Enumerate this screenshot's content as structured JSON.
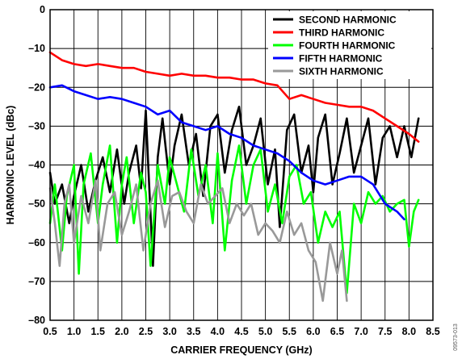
{
  "chart_data": {
    "type": "line",
    "xlabel": "CARRIER FREQUENCY (GHz)",
    "ylabel": "HARMONIC LEVEL (dBc)",
    "xlim": [
      0.5,
      8.5
    ],
    "ylim": [
      -80,
      0
    ],
    "xticks": [
      0.5,
      1.0,
      1.5,
      2.0,
      2.5,
      3.0,
      3.5,
      4.0,
      4.5,
      5.0,
      5.5,
      6.0,
      6.5,
      7.0,
      7.5,
      8.0,
      8.5
    ],
    "xtick_labels": [
      "0.5",
      "1.0",
      "1.5",
      "2.0",
      "2.5",
      "3.0",
      "3.5",
      "4.0",
      "4.5",
      "5.0",
      "5.5",
      "6.0",
      "6.5",
      "7.0",
      "7.5",
      "8.0",
      "8.5"
    ],
    "yticks": [
      0,
      -10,
      -20,
      -30,
      -40,
      -50,
      -60,
      -70,
      -80
    ],
    "ytick_labels": [
      "0",
      "–10",
      "–20",
      "–30",
      "–40",
      "–50",
      "–60",
      "–70",
      "–80"
    ],
    "grid": true,
    "legend_position": "top-right",
    "figure_id": "09573-013",
    "series": [
      {
        "name": "SECOND HARMONIC",
        "color": "#000000",
        "x": [
          0.5,
          0.6,
          0.75,
          0.9,
          1.0,
          1.15,
          1.3,
          1.45,
          1.6,
          1.75,
          1.9,
          2.05,
          2.15,
          2.3,
          2.4,
          2.5,
          2.55,
          2.65,
          2.75,
          2.85,
          3.0,
          3.1,
          3.25,
          3.4,
          3.55,
          3.7,
          3.85,
          4.0,
          4.15,
          4.3,
          4.45,
          4.6,
          4.75,
          4.9,
          5.05,
          5.2,
          5.3,
          5.45,
          5.6,
          5.75,
          5.9,
          6.0,
          6.1,
          6.25,
          6.4,
          6.55,
          6.7,
          6.85,
          7.0,
          7.15,
          7.3,
          7.45,
          7.6,
          7.75,
          7.9,
          8.05,
          8.2
        ],
        "y": [
          -42,
          -50,
          -45,
          -55,
          -48,
          -40,
          -52,
          -44,
          -38,
          -47,
          -36,
          -50,
          -42,
          -35,
          -46,
          -26,
          -40,
          -66,
          -38,
          -28,
          -45,
          -35,
          -27,
          -40,
          -32,
          -48,
          -30,
          -27,
          -42,
          -31,
          -25,
          -40,
          -35,
          -28,
          -45,
          -36,
          -56,
          -31,
          -27,
          -42,
          -35,
          -47,
          -33,
          -27,
          -45,
          -37,
          -28,
          -42,
          -35,
          -28,
          -45,
          -33,
          -30,
          -38,
          -30,
          -38,
          -28
        ]
      },
      {
        "name": "THIRD HARMONIC",
        "color": "#ff0000",
        "x": [
          0.5,
          0.75,
          1.0,
          1.25,
          1.5,
          1.75,
          2.0,
          2.25,
          2.5,
          2.75,
          3.0,
          3.25,
          3.5,
          3.75,
          4.0,
          4.25,
          4.5,
          4.75,
          5.0,
          5.25,
          5.5,
          5.75,
          6.0,
          6.25,
          6.5,
          6.75,
          7.0,
          7.25,
          7.5,
          7.75,
          8.0,
          8.2
        ],
        "y": [
          -11,
          -13,
          -14,
          -14.5,
          -14,
          -14.5,
          -15,
          -15,
          -16,
          -16.5,
          -17,
          -16.5,
          -17,
          -17,
          -17.5,
          -17.5,
          -18,
          -18,
          -19,
          -19.5,
          -23,
          -22,
          -23,
          -24,
          -24.5,
          -25,
          -25,
          -26,
          -28,
          -30,
          -32,
          -34
        ]
      },
      {
        "name": "FOURTH HARMONIC",
        "color": "#00ff00",
        "x": [
          0.5,
          0.6,
          0.75,
          0.85,
          1.0,
          1.1,
          1.2,
          1.35,
          1.5,
          1.6,
          1.75,
          1.9,
          2.0,
          2.1,
          2.25,
          2.4,
          2.5,
          2.6,
          2.75,
          2.9,
          3.0,
          3.15,
          3.3,
          3.45,
          3.6,
          3.75,
          3.9,
          4.0,
          4.15,
          4.3,
          4.45,
          4.6,
          4.75,
          4.9,
          5.05,
          5.2,
          5.35,
          5.5,
          5.65,
          5.8,
          5.95,
          6.1,
          6.25,
          6.4,
          6.55,
          6.7,
          6.85,
          7.0,
          7.15,
          7.3,
          7.45,
          7.6,
          7.75,
          7.9,
          8.0,
          8.1,
          8.2
        ],
        "y": [
          -55,
          -45,
          -62,
          -48,
          -40,
          -68,
          -45,
          -37,
          -55,
          -45,
          -35,
          -60,
          -45,
          -38,
          -55,
          -42,
          -47,
          -66,
          -40,
          -50,
          -38,
          -45,
          -52,
          -36,
          -48,
          -40,
          -55,
          -37,
          -62,
          -44,
          -35,
          -50,
          -40,
          -36,
          -52,
          -45,
          -55,
          -43,
          -40,
          -50,
          -47,
          -60,
          -52,
          -56,
          -52,
          -73,
          -50,
          -55,
          -47,
          -50,
          -48,
          -52,
          -50,
          -49,
          -61,
          -52,
          -49
        ]
      },
      {
        "name": "FIFTH HARMONIC",
        "color": "#0000ff",
        "x": [
          0.5,
          0.75,
          1.0,
          1.25,
          1.5,
          1.75,
          2.0,
          2.25,
          2.5,
          2.75,
          3.0,
          3.25,
          3.5,
          3.75,
          4.0,
          4.25,
          4.5,
          4.75,
          5.0,
          5.25,
          5.5,
          5.75,
          6.0,
          6.25,
          6.5,
          6.75,
          7.0,
          7.25,
          7.5,
          7.75,
          7.9
        ],
        "y": [
          -20,
          -19.5,
          -21,
          -22,
          -23,
          -22.5,
          -23,
          -24,
          -25,
          -27,
          -26,
          -29,
          -30,
          -31,
          -30,
          -32,
          -33,
          -35,
          -36,
          -37,
          -39,
          -42,
          -44,
          -45,
          -44,
          -43,
          -43,
          -45,
          -50,
          -52,
          -54
        ]
      },
      {
        "name": "SIXTH HARMONIC",
        "color": "#999999",
        "x": [
          0.5,
          0.6,
          0.7,
          0.8,
          0.9,
          1.0,
          1.15,
          1.3,
          1.45,
          1.55,
          1.7,
          1.85,
          2.0,
          2.15,
          2.3,
          2.45,
          2.6,
          2.75,
          2.9,
          3.05,
          3.2,
          3.35,
          3.5,
          3.65,
          3.8,
          3.95,
          4.1,
          4.25,
          4.4,
          4.55,
          4.7,
          4.85,
          5.0,
          5.15,
          5.3,
          5.45,
          5.6,
          5.75,
          5.9,
          6.05,
          6.2,
          6.35,
          6.5,
          6.6,
          6.7
        ],
        "y": [
          -46,
          -55,
          -66,
          -50,
          -45,
          -60,
          -48,
          -55,
          -44,
          -62,
          -50,
          -47,
          -58,
          -52,
          -45,
          -62,
          -50,
          -44,
          -56,
          -48,
          -47,
          -52,
          -55,
          -45,
          -50,
          -48,
          -46,
          -55,
          -50,
          -53,
          -50,
          -58,
          -55,
          -57,
          -60,
          -52,
          -58,
          -55,
          -62,
          -65,
          -75,
          -60,
          -68,
          -62,
          -75
        ]
      }
    ]
  }
}
